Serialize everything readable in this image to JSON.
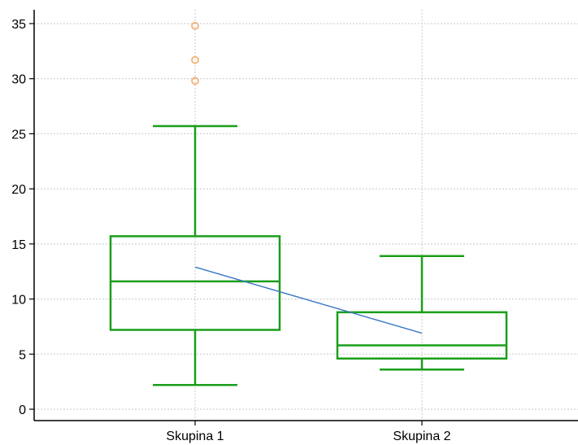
{
  "chart_data": {
    "type": "boxplot",
    "title": "",
    "xlabel": "",
    "ylabel": "",
    "ylim": [
      -1,
      36
    ],
    "yticks": [
      0,
      5,
      10,
      15,
      20,
      25,
      30,
      35
    ],
    "grid": true,
    "categories": [
      "Skupina 1",
      "Skupina 2"
    ],
    "boxes": [
      {
        "category": "Skupina 1",
        "whisker_low": 2.2,
        "q1": 7.2,
        "median": 11.6,
        "q3": 15.7,
        "whisker_high": 25.7,
        "mean": 12.9,
        "outliers": [
          29.8,
          31.7,
          34.8
        ]
      },
      {
        "category": "Skupina 2",
        "whisker_low": 3.6,
        "q1": 4.6,
        "median": 5.8,
        "q3": 8.8,
        "whisker_high": 13.9,
        "mean": 6.9,
        "outliers": []
      }
    ],
    "colors": {
      "box": "#1a9e1a",
      "outlier": "#f4a460",
      "mean_line": "#3a78c4",
      "grid": "#c8c8c8",
      "axis": "#000000"
    }
  }
}
